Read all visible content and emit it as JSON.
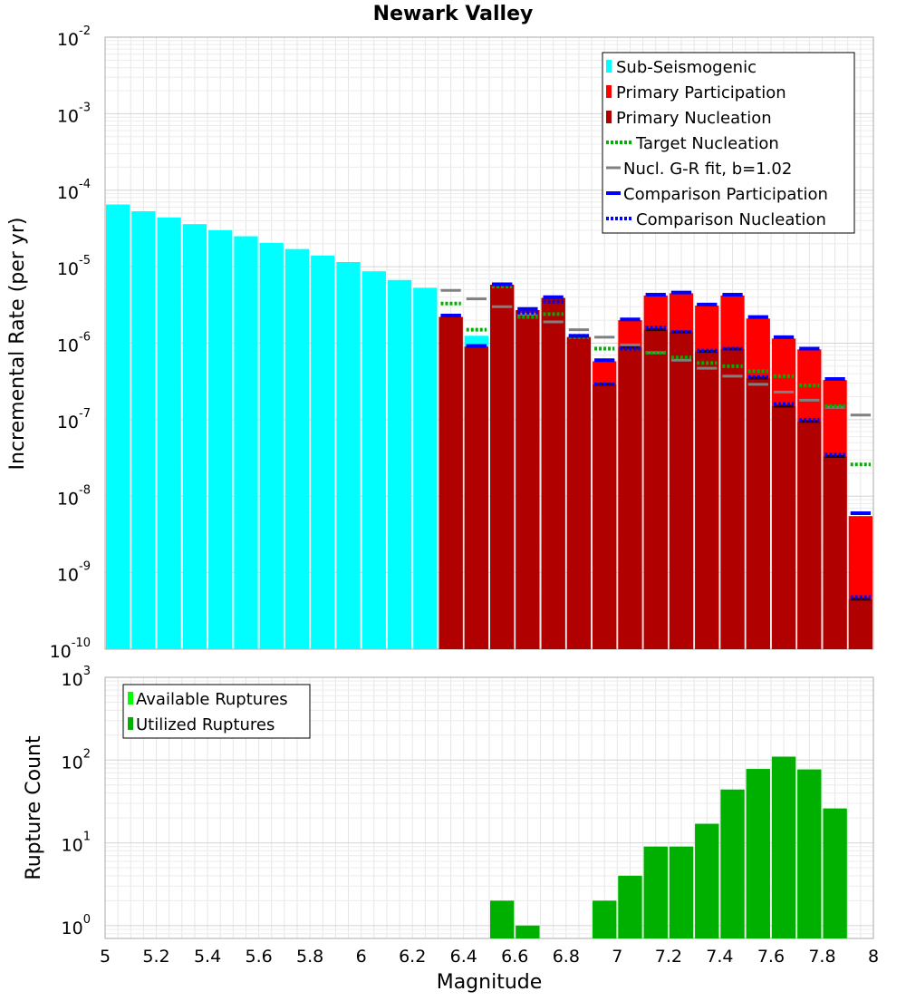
{
  "chart_data": [
    {
      "type": "bar",
      "title": "Newark Valley",
      "xlabel": "Magnitude",
      "ylabel": "Incremental Rate (per yr)",
      "yscale": "log",
      "xlim": [
        5,
        8
      ],
      "ylim": [
        1e-10,
        0.01
      ],
      "bin_width": 0.1,
      "y_tick_bases": [
        "10",
        "10",
        "10",
        "10",
        "10",
        "10",
        "10",
        "10",
        "10"
      ],
      "y_tick_exponents": [
        "-10",
        "-9",
        "-8",
        "-7",
        "-6",
        "-5",
        "-4",
        "-3",
        "-2"
      ],
      "y_tick_values": [
        1e-10,
        1e-09,
        1e-08,
        1e-07,
        1e-06,
        1e-05,
        0.0001,
        0.001,
        0.01
      ],
      "legend_position": "top-right",
      "legend": [
        "Sub-Seismogenic",
        "Primary Participation",
        "Primary Nucleation",
        "Target Nucleation",
        "Nucl. G-R fit, b=1.02",
        "Comparison Participation",
        "Comparison Nucleation"
      ],
      "series": [
        {
          "name": "Sub-Seismogenic",
          "color": "#00ffff",
          "x": [
            5.05,
            5.15,
            5.25,
            5.35,
            5.45,
            5.55,
            5.65,
            5.75,
            5.85,
            5.95,
            6.05,
            6.15,
            6.25,
            6.35,
            6.45
          ],
          "values": [
            6.5e-05,
            5.3e-05,
            4.4e-05,
            3.6e-05,
            3e-05,
            2.5e-05,
            2.05e-05,
            1.7e-05,
            1.4e-05,
            1.15e-05,
            8.7e-06,
            6.7e-06,
            5.3e-06,
            2.1e-06,
            1.25e-06
          ]
        },
        {
          "name": "Primary Participation",
          "color": "#ff0000",
          "x": [
            6.35,
            6.45,
            6.55,
            6.65,
            6.75,
            6.85,
            6.95,
            7.05,
            7.15,
            7.25,
            7.35,
            7.45,
            7.55,
            7.65,
            7.75,
            7.85,
            7.95
          ],
          "values": [
            2.2e-06,
            9e-07,
            5.8e-06,
            2.7e-06,
            3.9e-06,
            1.2e-06,
            5.8e-07,
            2e-06,
            4.2e-06,
            4.5e-06,
            3.1e-06,
            4.2e-06,
            2.1e-06,
            1.15e-06,
            8.3e-07,
            3.3e-07,
            5.5e-09
          ]
        },
        {
          "name": "Primary Nucleation",
          "color": "#b00000",
          "x": [
            6.35,
            6.45,
            6.55,
            6.65,
            6.75,
            6.85,
            6.95,
            7.05,
            7.15,
            7.25,
            7.35,
            7.45,
            7.55,
            7.65,
            7.75,
            7.85,
            7.95
          ],
          "values": [
            2.2e-06,
            9e-07,
            5.8e-06,
            2.7e-06,
            3.9e-06,
            1.2e-06,
            2.9e-07,
            8.8e-07,
            1.5e-06,
            1.4e-06,
            7.8e-07,
            8.4e-07,
            3.5e-07,
            1.5e-07,
            9.5e-08,
            3.3e-08,
            4.5e-10
          ]
        },
        {
          "name": "Target Nucleation",
          "color": "#00b000",
          "x": [
            6.35,
            6.45,
            6.55,
            6.65,
            6.75,
            6.85,
            6.95,
            7.05,
            7.15,
            7.25,
            7.35,
            7.45,
            7.55,
            7.65,
            7.75,
            7.85,
            7.95
          ],
          "values": [
            3.3e-06,
            1.5e-06,
            5.5e-06,
            2.2e-06,
            2.4e-06,
            1.2e-06,
            8.5e-07,
            8.5e-07,
            7.5e-07,
            6.5e-07,
            5.5e-07,
            5e-07,
            4.3e-07,
            3.7e-07,
            2.8e-07,
            1.5e-07,
            2.6e-08
          ]
        },
        {
          "name": "Nucl. G-R fit, b=1.02",
          "color": "#808080",
          "x": [
            6.35,
            6.45,
            6.55,
            6.65,
            6.75,
            6.85,
            6.95,
            7.05,
            7.15,
            7.25,
            7.35,
            7.45,
            7.55,
            7.65,
            7.75,
            7.85,
            7.95
          ],
          "values": [
            4.9e-06,
            3.8e-06,
            3e-06,
            2.4e-06,
            1.9e-06,
            1.5e-06,
            1.2e-06,
            9.5e-07,
            7.5e-07,
            6e-07,
            4.7e-07,
            3.7e-07,
            2.9e-07,
            2.3e-07,
            1.8e-07,
            1.45e-07,
            1.15e-07
          ]
        },
        {
          "name": "Comparison Participation",
          "color": "#0000ff",
          "x": [
            6.35,
            6.45,
            6.55,
            6.65,
            6.75,
            6.85,
            6.95,
            7.05,
            7.15,
            7.25,
            7.35,
            7.45,
            7.55,
            7.65,
            7.75,
            7.85,
            7.95
          ],
          "values": [
            2.3e-06,
            9.2e-07,
            5.9e-06,
            2.8e-06,
            4e-06,
            1.25e-06,
            6e-07,
            2.05e-06,
            4.3e-06,
            4.6e-06,
            3.2e-06,
            4.3e-06,
            2.2e-06,
            1.2e-06,
            8.5e-07,
            3.4e-07,
            6e-09
          ]
        },
        {
          "name": "Comparison Nucleation",
          "color": "#0000ff",
          "x": [
            6.35,
            6.45,
            6.55,
            6.65,
            6.75,
            6.85,
            6.95,
            7.05,
            7.15,
            7.25,
            7.35,
            7.45,
            7.55,
            7.65,
            7.75,
            7.85,
            7.95
          ],
          "values": [
            2.3e-06,
            9.2e-07,
            5.9e-06,
            2.5e-06,
            3.5e-06,
            1.25e-06,
            2.9e-07,
            8.5e-07,
            1.6e-06,
            1.4e-06,
            8e-07,
            8.5e-07,
            3.6e-07,
            1.6e-07,
            1e-07,
            3.5e-08,
            4.8e-10
          ]
        }
      ]
    },
    {
      "type": "bar",
      "title": "",
      "xlabel": "Magnitude",
      "ylabel": "Rupture Count",
      "yscale": "log",
      "xlim": [
        5,
        8
      ],
      "ylim": [
        0.7,
        1000
      ],
      "bin_width": 0.1,
      "x_ticks": [
        "5",
        "5.2",
        "5.4",
        "5.6",
        "5.8",
        "6",
        "6.2",
        "6.4",
        "6.6",
        "6.8",
        "7",
        "7.2",
        "7.4",
        "7.6",
        "7.8",
        "8"
      ],
      "y_tick_bases": [
        "10",
        "10",
        "10",
        "10"
      ],
      "y_tick_exponents": [
        "0",
        "1",
        "2",
        "3"
      ],
      "y_tick_values": [
        1,
        10,
        100,
        1000
      ],
      "legend_position": "top-left",
      "legend": [
        "Available Ruptures",
        "Utilized Ruptures"
      ],
      "series": [
        {
          "name": "Available Ruptures",
          "color": "#00ff00",
          "x": [
            6.55,
            6.65,
            6.95,
            7.05,
            7.15,
            7.25,
            7.35,
            7.45,
            7.55,
            7.65,
            7.75,
            7.85
          ],
          "values": [
            2,
            1,
            2,
            4,
            9,
            9,
            17,
            44,
            78,
            110,
            77,
            26
          ]
        },
        {
          "name": "Utilized Ruptures",
          "color": "#00b000",
          "x": [
            6.55,
            6.65,
            6.95,
            7.05,
            7.15,
            7.25,
            7.35,
            7.45,
            7.55,
            7.65,
            7.75,
            7.85
          ],
          "values": [
            2,
            1,
            2,
            4,
            9,
            9,
            17,
            44,
            78,
            110,
            77,
            26
          ]
        }
      ]
    }
  ]
}
